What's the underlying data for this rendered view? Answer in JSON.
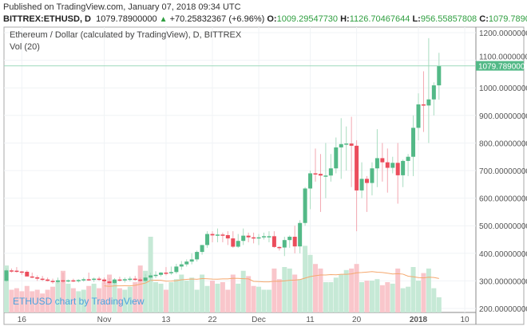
{
  "header": {
    "published": "Published on TradingView.com, January 07, 2018 09:34 UTC",
    "symbol": "BITTREX:ETHUSD, D",
    "last": "1079.78900000",
    "change": "+70.25832367 (+6.96%)",
    "o_label": "O:",
    "o": "1009.29547730",
    "h_label": "H:",
    "h": "1126.70467644",
    "l_label": "L:",
    "l": "956.55857808",
    "c_label": "C:",
    "c": "1079.78900000"
  },
  "pane_title": "Ethereum / Dollar (calculated by TradingView), D, BITTREX",
  "volume_title": "Vol (20)",
  "watermark": "ETHUSD chart by TradingView",
  "chart_data": {
    "type": "candlestick",
    "ylim": [
      200,
      1200
    ],
    "yticks": [
      "1200.00000000",
      "1100.00000000",
      "1000.00000000",
      "900.00000000",
      "800.00000000",
      "700.00000000",
      "600.00000000",
      "500.00000000",
      "400.00000000",
      "300.00000000",
      "200.00000000"
    ],
    "ytick_values": [
      1200,
      1100,
      1000,
      900,
      800,
      700,
      600,
      500,
      400,
      300,
      200
    ],
    "last_price_label": "1079.78900000",
    "last_price": 1079.789,
    "xticks": [
      {
        "label": "16",
        "day": 3
      },
      {
        "label": "Nov",
        "day": 19
      },
      {
        "label": "13",
        "day": 31
      },
      {
        "label": "22",
        "day": 40
      },
      {
        "label": "Dec",
        "day": 49
      },
      {
        "label": "11",
        "day": 59
      },
      {
        "label": "20",
        "day": 68
      },
      {
        "label": "2018",
        "day": 80
      },
      {
        "label": "10",
        "day": 89
      }
    ],
    "colors": {
      "up": "#53b987",
      "down": "#eb4d5c",
      "vol_up": "#c6e9d6",
      "vol_down": "#f9c6cb",
      "ma": "#f5a86e"
    },
    "candles": [
      [
        300,
        345,
        296,
        338,
        62
      ],
      [
        338,
        345,
        330,
        337,
        30
      ],
      [
        337,
        350,
        330,
        334,
        32
      ],
      [
        334,
        336,
        322,
        333,
        28
      ],
      [
        333,
        338,
        318,
        316,
        35
      ],
      [
        316,
        330,
        310,
        313,
        28
      ],
      [
        313,
        320,
        300,
        308,
        30
      ],
      [
        308,
        318,
        300,
        305,
        25
      ],
      [
        305,
        312,
        298,
        300,
        30
      ],
      [
        300,
        308,
        290,
        296,
        34
      ],
      [
        296,
        312,
        290,
        302,
        40
      ],
      [
        302,
        330,
        292,
        300,
        55
      ],
      [
        300,
        305,
        295,
        302,
        38
      ],
      [
        302,
        308,
        296,
        301,
        32
      ],
      [
        301,
        306,
        294,
        303,
        28
      ],
      [
        303,
        312,
        297,
        306,
        30
      ],
      [
        306,
        330,
        300,
        305,
        35
      ],
      [
        305,
        312,
        296,
        308,
        38
      ],
      [
        308,
        315,
        300,
        305,
        32
      ],
      [
        305,
        312,
        290,
        298,
        40
      ],
      [
        298,
        310,
        285,
        292,
        50
      ],
      [
        292,
        310,
        288,
        305,
        42
      ],
      [
        305,
        315,
        298,
        302,
        32
      ],
      [
        302,
        312,
        294,
        306,
        30
      ],
      [
        306,
        316,
        298,
        308,
        34
      ],
      [
        308,
        318,
        300,
        305,
        40
      ],
      [
        305,
        312,
        296,
        300,
        62
      ],
      [
        300,
        325,
        292,
        312,
        55
      ],
      [
        312,
        330,
        300,
        320,
        100
      ],
      [
        320,
        335,
        310,
        322,
        40
      ],
      [
        322,
        332,
        316,
        330,
        38
      ],
      [
        330,
        350,
        320,
        328,
        30
      ],
      [
        328,
        352,
        322,
        332,
        40
      ],
      [
        332,
        362,
        326,
        352,
        44
      ],
      [
        352,
        372,
        340,
        360,
        50
      ],
      [
        360,
        378,
        352,
        370,
        42
      ],
      [
        370,
        400,
        360,
        378,
        46
      ],
      [
        378,
        410,
        370,
        405,
        30
      ],
      [
        405,
        430,
        395,
        430,
        50
      ],
      [
        430,
        480,
        420,
        470,
        35
      ],
      [
        470,
        480,
        440,
        465,
        42
      ],
      [
        465,
        490,
        440,
        468,
        38
      ],
      [
        468,
        475,
        440,
        466,
        40
      ],
      [
        466,
        480,
        430,
        454,
        30
      ],
      [
        454,
        480,
        420,
        424,
        50
      ],
      [
        424,
        470,
        420,
        445,
        38
      ],
      [
        445,
        490,
        430,
        464,
        55
      ],
      [
        464,
        475,
        440,
        458,
        48
      ],
      [
        458,
        475,
        436,
        454,
        35
      ],
      [
        454,
        470,
        430,
        458,
        34
      ],
      [
        458,
        475,
        450,
        462,
        30
      ],
      [
        462,
        480,
        440,
        462,
        30
      ],
      [
        462,
        480,
        420,
        423,
        58
      ],
      [
        423,
        425,
        410,
        421,
        44
      ],
      [
        421,
        460,
        390,
        448,
        60
      ],
      [
        448,
        465,
        420,
        460,
        58
      ],
      [
        460,
        500,
        400,
        425,
        50
      ],
      [
        425,
        520,
        400,
        510,
        44
      ],
      [
        510,
        640,
        500,
        635,
        88
      ],
      [
        635,
        700,
        560,
        690,
        76
      ],
      [
        690,
        780,
        660,
        688,
        64
      ],
      [
        688,
        760,
        550,
        682,
        58
      ],
      [
        682,
        800,
        600,
        682,
        40
      ],
      [
        682,
        760,
        660,
        708,
        40
      ],
      [
        708,
        820,
        690,
        784,
        46
      ],
      [
        784,
        890,
        670,
        796,
        50
      ],
      [
        796,
        860,
        700,
        798,
        56
      ],
      [
        798,
        895,
        640,
        790,
        58
      ],
      [
        790,
        810,
        480,
        628,
        64
      ],
      [
        628,
        730,
        600,
        670,
        40
      ],
      [
        670,
        680,
        550,
        655,
        42
      ],
      [
        655,
        730,
        610,
        708,
        42
      ],
      [
        708,
        850,
        640,
        745,
        44
      ],
      [
        745,
        800,
        660,
        730,
        36
      ],
      [
        730,
        780,
        620,
        710,
        40
      ],
      [
        710,
        750,
        690,
        728,
        38
      ],
      [
        728,
        800,
        580,
        683,
        58
      ],
      [
        683,
        740,
        640,
        735,
        32
      ],
      [
        735,
        760,
        680,
        750,
        34
      ],
      [
        750,
        900,
        680,
        855,
        60
      ],
      [
        855,
        980,
        810,
        940,
        42
      ],
      [
        940,
        1060,
        840,
        936,
        52
      ],
      [
        936,
        1180,
        800,
        958,
        58
      ],
      [
        958,
        1020,
        900,
        1009,
        32
      ],
      [
        1009,
        1127,
        957,
        1080,
        20
      ]
    ]
  }
}
